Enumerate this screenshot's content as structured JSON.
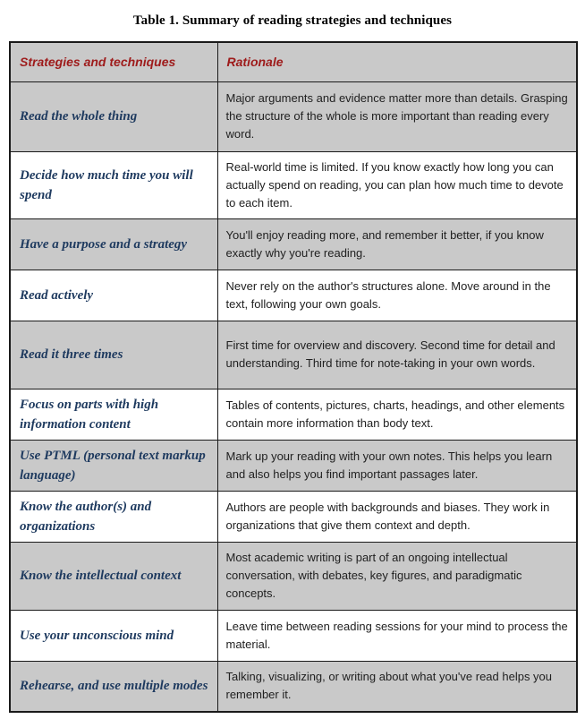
{
  "title": "Table 1. Summary of reading strategies and techniques",
  "table": {
    "columns": [
      "Strategies and techniques",
      "Rationale"
    ],
    "rows": [
      {
        "strategy": "Read the whole thing",
        "rationale": "Major arguments and evidence matter more than details. Grasping the structure of the whole is more important than reading every word."
      },
      {
        "strategy": "Decide how much time you will spend",
        "rationale": "Real-world time is limited. If you know exactly how long you can actually spend on reading, you can plan how much time to devote to each item."
      },
      {
        "strategy": "Have a purpose and a strategy",
        "rationale": "You'll enjoy reading more, and remember it better, if you know exactly why you're reading."
      },
      {
        "strategy": "Read actively",
        "rationale": "Never rely on the author's structures alone. Move around in the text, following your own goals."
      },
      {
        "strategy": "Read it three times",
        "rationale": "First time for overview and discovery. Second time for detail and understanding. Third time for note-taking in your own words."
      },
      {
        "strategy": "Focus on parts with high information content",
        "rationale": "Tables of contents, pictures, charts, headings, and other elements contain more information than body text."
      },
      {
        "strategy": "Use PTML (personal text markup language)",
        "rationale": "Mark up your reading with your own notes. This helps you learn and also helps you find important passages later."
      },
      {
        "strategy": "Know the author(s) and organizations",
        "rationale": "Authors are people with backgrounds and biases. They work in organizations that give them context and depth."
      },
      {
        "strategy": "Know the intellectual context",
        "rationale": "Most academic writing is part of an ongoing intellectual conversation, with debates, key figures, and paradigmatic concepts."
      },
      {
        "strategy": "Use your unconscious mind",
        "rationale": "Leave time between reading sessions for your mind to process the material."
      },
      {
        "strategy": "Rehearse, and use multiple modes",
        "rationale": "Talking, visualizing, or writing about what you've read helps you remember it."
      }
    ]
  },
  "theme": {
    "pageBg": "#ffffff",
    "titleText": "#000000",
    "stripe": "#c9c9c9",
    "rowAlt": "#ffffff",
    "headerText": "#9e1b1b",
    "strategyText": "#1e3a5f",
    "bodyText": "#212121",
    "border": "#1a1a1a"
  }
}
